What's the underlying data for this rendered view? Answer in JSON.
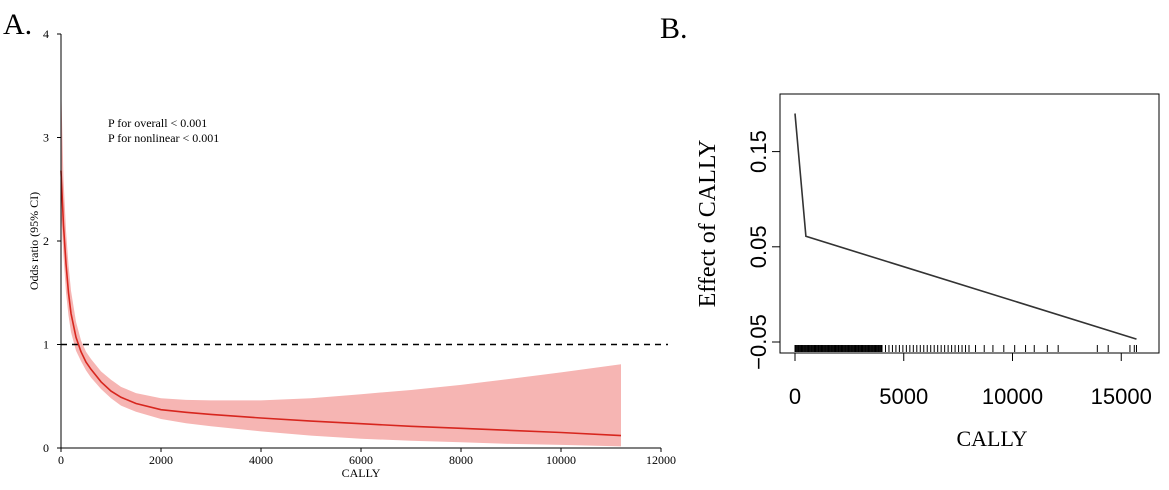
{
  "panels": {
    "a_label": "A.",
    "b_label": "B."
  },
  "chart_data": [
    {
      "type": "line",
      "panel": "A.",
      "xlabel": "CALLY",
      "ylabel": "Odds ratio (95% CI)",
      "xlim": [
        0,
        12000
      ],
      "ylim": [
        0,
        4
      ],
      "x_ticks": [
        "0",
        "2000",
        "4000",
        "6000",
        "8000",
        "10000",
        "12000"
      ],
      "y_ticks": [
        "0",
        "1",
        "2",
        "3",
        "4"
      ],
      "annotations": [
        "P for overall < 0.001",
        "P for nonlinear < 0.001"
      ],
      "reference_line": {
        "y": 1,
        "style": "dashed"
      },
      "colors": {
        "line": "#d7261e",
        "band": "#f6b5b3"
      },
      "x": [
        0,
        50,
        100,
        150,
        200,
        300,
        400,
        500,
        600,
        800,
        1000,
        1200,
        1500,
        2000,
        2500,
        3000,
        4000,
        5000,
        6000,
        7000,
        8000,
        9000,
        10000,
        11200
      ],
      "y": [
        2.68,
        2.15,
        1.78,
        1.5,
        1.3,
        1.07,
        0.93,
        0.83,
        0.76,
        0.64,
        0.55,
        0.49,
        0.43,
        0.37,
        0.345,
        0.325,
        0.29,
        0.26,
        0.235,
        0.21,
        0.19,
        0.17,
        0.15,
        0.12
      ],
      "lower": [
        2.3,
        1.85,
        1.5,
        1.28,
        1.12,
        0.94,
        0.84,
        0.75,
        0.68,
        0.57,
        0.48,
        0.41,
        0.35,
        0.28,
        0.24,
        0.21,
        0.16,
        0.12,
        0.09,
        0.07,
        0.055,
        0.04,
        0.03,
        0.015
      ],
      "upper": [
        3.55,
        2.6,
        2.1,
        1.77,
        1.52,
        1.22,
        1.04,
        0.93,
        0.86,
        0.74,
        0.66,
        0.59,
        0.53,
        0.48,
        0.465,
        0.46,
        0.46,
        0.48,
        0.52,
        0.56,
        0.61,
        0.67,
        0.73,
        0.81
      ]
    },
    {
      "type": "line",
      "panel": "B.",
      "xlabel": "CALLY",
      "ylabel": "Effect of CALLY",
      "xlim": [
        0,
        16000
      ],
      "ylim": [
        -0.05,
        0.2
      ],
      "x_ticks": [
        "0",
        "5000",
        "10000",
        "15000"
      ],
      "y_ticks": [
        "−0.05",
        "0.05",
        "0.15"
      ],
      "colors": {
        "line": "#333333"
      },
      "x": [
        0,
        500,
        15700
      ],
      "y": [
        0.19,
        0.061,
        -0.047
      ],
      "rug": true
    }
  ]
}
